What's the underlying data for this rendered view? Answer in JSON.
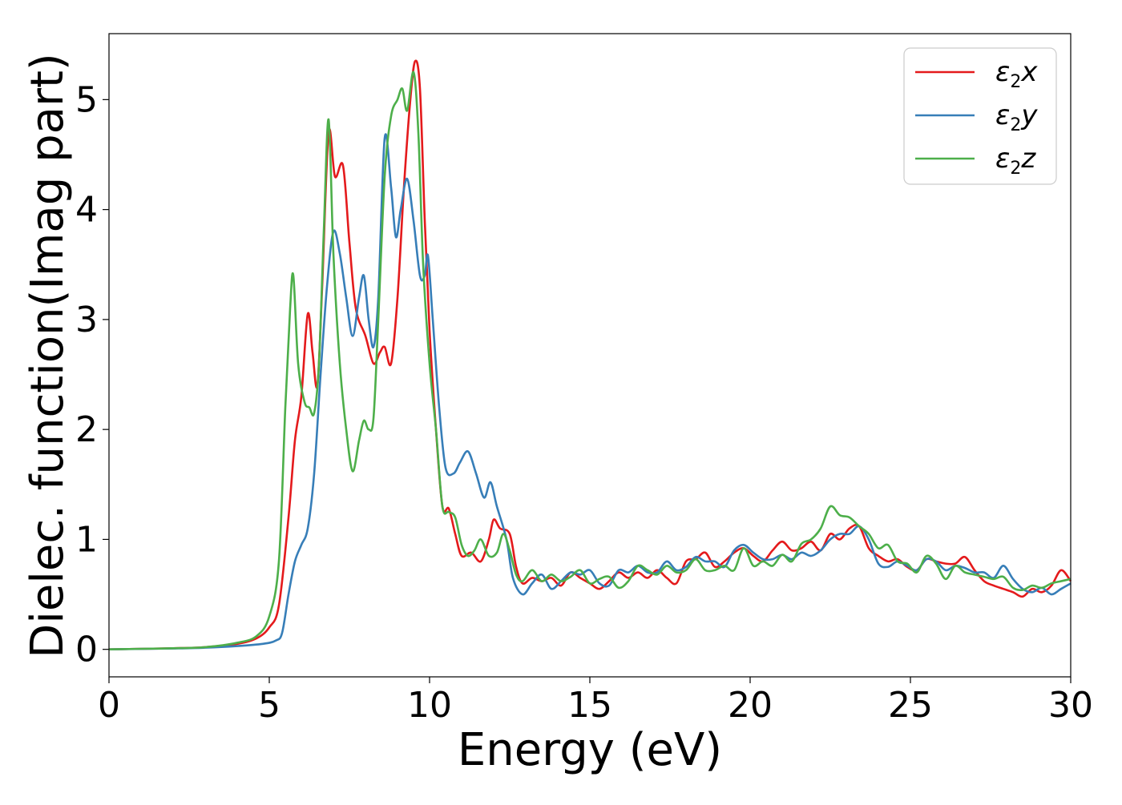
{
  "chart_data": {
    "type": "line",
    "xlabel": "Energy (eV)",
    "ylabel": "Dielec. function(Imag part)",
    "xlim": [
      0,
      30
    ],
    "ylim": [
      -0.25,
      5.6
    ],
    "xticks": [
      "0",
      "5",
      "10",
      "15",
      "20",
      "25",
      "30"
    ],
    "yticks": [
      "0",
      "1",
      "2",
      "3",
      "4",
      "5"
    ],
    "grid": false,
    "legend_position": "top-right",
    "series": [
      {
        "name": "ε₂x",
        "label_main": "ε",
        "label_sub": "2",
        "label_tail": "x",
        "color": "#e41a1c",
        "points": [
          [
            0,
            0
          ],
          [
            1,
            0.005
          ],
          [
            2,
            0.01
          ],
          [
            3,
            0.02
          ],
          [
            4,
            0.05
          ],
          [
            4.6,
            0.1
          ],
          [
            5.0,
            0.2
          ],
          [
            5.3,
            0.4
          ],
          [
            5.6,
            1.2
          ],
          [
            5.8,
            1.9
          ],
          [
            6.0,
            2.3
          ],
          [
            6.2,
            3.05
          ],
          [
            6.35,
            2.7
          ],
          [
            6.5,
            2.4
          ],
          [
            6.65,
            3.3
          ],
          [
            6.85,
            4.7
          ],
          [
            7.05,
            4.3
          ],
          [
            7.3,
            4.4
          ],
          [
            7.5,
            3.7
          ],
          [
            7.7,
            3.1
          ],
          [
            8.0,
            2.85
          ],
          [
            8.25,
            2.6
          ],
          [
            8.45,
            2.7
          ],
          [
            8.6,
            2.75
          ],
          [
            8.8,
            2.6
          ],
          [
            9.0,
            3.2
          ],
          [
            9.2,
            4.2
          ],
          [
            9.4,
            5.0
          ],
          [
            9.55,
            5.35
          ],
          [
            9.7,
            5.1
          ],
          [
            9.85,
            3.9
          ],
          [
            10.0,
            2.9
          ],
          [
            10.2,
            2.0
          ],
          [
            10.4,
            1.3
          ],
          [
            10.6,
            1.28
          ],
          [
            10.8,
            1.05
          ],
          [
            11.0,
            0.85
          ],
          [
            11.3,
            0.88
          ],
          [
            11.6,
            0.8
          ],
          [
            11.85,
            1.0
          ],
          [
            12.0,
            1.18
          ],
          [
            12.2,
            1.1
          ],
          [
            12.5,
            1.05
          ],
          [
            12.7,
            0.75
          ],
          [
            12.9,
            0.6
          ],
          [
            13.2,
            0.65
          ],
          [
            13.5,
            0.62
          ],
          [
            13.8,
            0.65
          ],
          [
            14.1,
            0.58
          ],
          [
            14.4,
            0.7
          ],
          [
            14.7,
            0.65
          ],
          [
            15.0,
            0.6
          ],
          [
            15.3,
            0.55
          ],
          [
            15.6,
            0.62
          ],
          [
            15.9,
            0.7
          ],
          [
            16.2,
            0.65
          ],
          [
            16.5,
            0.7
          ],
          [
            16.8,
            0.65
          ],
          [
            17.1,
            0.72
          ],
          [
            17.4,
            0.65
          ],
          [
            17.7,
            0.6
          ],
          [
            18.0,
            0.8
          ],
          [
            18.3,
            0.82
          ],
          [
            18.6,
            0.88
          ],
          [
            18.9,
            0.75
          ],
          [
            19.2,
            0.8
          ],
          [
            19.5,
            0.88
          ],
          [
            19.8,
            0.92
          ],
          [
            20.1,
            0.85
          ],
          [
            20.4,
            0.8
          ],
          [
            20.7,
            0.9
          ],
          [
            21.0,
            0.98
          ],
          [
            21.3,
            0.9
          ],
          [
            21.6,
            0.92
          ],
          [
            21.9,
            0.98
          ],
          [
            22.2,
            0.9
          ],
          [
            22.5,
            1.05
          ],
          [
            22.8,
            1.0
          ],
          [
            23.1,
            1.1
          ],
          [
            23.4,
            1.12
          ],
          [
            23.7,
            0.92
          ],
          [
            24.0,
            0.85
          ],
          [
            24.3,
            0.8
          ],
          [
            24.6,
            0.82
          ],
          [
            24.9,
            0.75
          ],
          [
            25.2,
            0.72
          ],
          [
            25.5,
            0.82
          ],
          [
            25.8,
            0.8
          ],
          [
            26.1,
            0.78
          ],
          [
            26.4,
            0.78
          ],
          [
            26.7,
            0.84
          ],
          [
            27.0,
            0.72
          ],
          [
            27.3,
            0.62
          ],
          [
            27.6,
            0.58
          ],
          [
            27.9,
            0.55
          ],
          [
            28.2,
            0.52
          ],
          [
            28.5,
            0.48
          ],
          [
            28.8,
            0.55
          ],
          [
            29.1,
            0.52
          ],
          [
            29.4,
            0.58
          ],
          [
            29.7,
            0.72
          ],
          [
            30.0,
            0.62
          ]
        ]
      },
      {
        "name": "ε₂y",
        "label_main": "ε",
        "label_sub": "2",
        "label_tail": "y",
        "color": "#377eb8",
        "points": [
          [
            0,
            0
          ],
          [
            1,
            0.004
          ],
          [
            2,
            0.008
          ],
          [
            3,
            0.015
          ],
          [
            4,
            0.03
          ],
          [
            4.8,
            0.05
          ],
          [
            5.2,
            0.08
          ],
          [
            5.4,
            0.15
          ],
          [
            5.6,
            0.5
          ],
          [
            5.8,
            0.8
          ],
          [
            6.0,
            0.95
          ],
          [
            6.2,
            1.1
          ],
          [
            6.4,
            1.6
          ],
          [
            6.6,
            2.5
          ],
          [
            6.8,
            3.3
          ],
          [
            7.0,
            3.8
          ],
          [
            7.2,
            3.6
          ],
          [
            7.4,
            3.2
          ],
          [
            7.6,
            2.85
          ],
          [
            7.8,
            3.2
          ],
          [
            7.95,
            3.4
          ],
          [
            8.1,
            3.0
          ],
          [
            8.25,
            2.75
          ],
          [
            8.4,
            3.2
          ],
          [
            8.6,
            4.65
          ],
          [
            8.8,
            4.2
          ],
          [
            8.95,
            3.75
          ],
          [
            9.1,
            4.0
          ],
          [
            9.3,
            4.28
          ],
          [
            9.5,
            3.9
          ],
          [
            9.7,
            3.4
          ],
          [
            9.85,
            3.4
          ],
          [
            9.95,
            3.58
          ],
          [
            10.1,
            3.0
          ],
          [
            10.3,
            2.2
          ],
          [
            10.5,
            1.65
          ],
          [
            10.75,
            1.6
          ],
          [
            10.95,
            1.7
          ],
          [
            11.2,
            1.8
          ],
          [
            11.45,
            1.6
          ],
          [
            11.7,
            1.38
          ],
          [
            11.9,
            1.52
          ],
          [
            12.1,
            1.3
          ],
          [
            12.4,
            1.0
          ],
          [
            12.6,
            0.65
          ],
          [
            12.9,
            0.5
          ],
          [
            13.2,
            0.6
          ],
          [
            13.5,
            0.68
          ],
          [
            13.8,
            0.55
          ],
          [
            14.1,
            0.62
          ],
          [
            14.4,
            0.7
          ],
          [
            14.7,
            0.68
          ],
          [
            15.0,
            0.72
          ],
          [
            15.3,
            0.6
          ],
          [
            15.6,
            0.58
          ],
          [
            15.9,
            0.72
          ],
          [
            16.2,
            0.7
          ],
          [
            16.5,
            0.76
          ],
          [
            16.8,
            0.7
          ],
          [
            17.1,
            0.7
          ],
          [
            17.4,
            0.8
          ],
          [
            17.7,
            0.72
          ],
          [
            18.0,
            0.75
          ],
          [
            18.3,
            0.84
          ],
          [
            18.6,
            0.8
          ],
          [
            18.9,
            0.8
          ],
          [
            19.2,
            0.75
          ],
          [
            19.5,
            0.9
          ],
          [
            19.8,
            0.95
          ],
          [
            20.1,
            0.88
          ],
          [
            20.4,
            0.82
          ],
          [
            20.7,
            0.82
          ],
          [
            21.0,
            0.86
          ],
          [
            21.3,
            0.82
          ],
          [
            21.6,
            0.88
          ],
          [
            21.9,
            0.85
          ],
          [
            22.2,
            0.9
          ],
          [
            22.5,
            1.0
          ],
          [
            22.8,
            1.05
          ],
          [
            23.1,
            1.05
          ],
          [
            23.4,
            1.12
          ],
          [
            23.7,
            1.0
          ],
          [
            24.0,
            0.78
          ],
          [
            24.3,
            0.75
          ],
          [
            24.6,
            0.8
          ],
          [
            24.9,
            0.76
          ],
          [
            25.2,
            0.72
          ],
          [
            25.5,
            0.82
          ],
          [
            25.8,
            0.8
          ],
          [
            26.1,
            0.72
          ],
          [
            26.4,
            0.76
          ],
          [
            26.7,
            0.74
          ],
          [
            27.0,
            0.7
          ],
          [
            27.3,
            0.7
          ],
          [
            27.6,
            0.65
          ],
          [
            27.9,
            0.76
          ],
          [
            28.2,
            0.64
          ],
          [
            28.5,
            0.55
          ],
          [
            28.8,
            0.52
          ],
          [
            29.1,
            0.56
          ],
          [
            29.4,
            0.5
          ],
          [
            29.7,
            0.55
          ],
          [
            30.0,
            0.6
          ]
        ]
      },
      {
        "name": "ε₂z",
        "label_main": "ε",
        "label_sub": "2",
        "label_tail": "z",
        "color": "#4daf4a",
        "points": [
          [
            0,
            0
          ],
          [
            1,
            0.005
          ],
          [
            2,
            0.01
          ],
          [
            3,
            0.02
          ],
          [
            4,
            0.06
          ],
          [
            4.6,
            0.12
          ],
          [
            5.0,
            0.3
          ],
          [
            5.3,
            0.8
          ],
          [
            5.5,
            2.2
          ],
          [
            5.65,
            3.1
          ],
          [
            5.75,
            3.4
          ],
          [
            5.9,
            2.6
          ],
          [
            6.1,
            2.25
          ],
          [
            6.25,
            2.2
          ],
          [
            6.4,
            2.15
          ],
          [
            6.55,
            2.6
          ],
          [
            6.7,
            3.8
          ],
          [
            6.85,
            4.82
          ],
          [
            7.0,
            3.6
          ],
          [
            7.2,
            2.6
          ],
          [
            7.4,
            2.0
          ],
          [
            7.6,
            1.62
          ],
          [
            7.8,
            1.9
          ],
          [
            7.95,
            2.08
          ],
          [
            8.1,
            2.0
          ],
          [
            8.25,
            2.1
          ],
          [
            8.4,
            3.0
          ],
          [
            8.6,
            4.3
          ],
          [
            8.8,
            4.85
          ],
          [
            9.0,
            5.0
          ],
          [
            9.15,
            5.1
          ],
          [
            9.3,
            4.9
          ],
          [
            9.5,
            5.25
          ],
          [
            9.65,
            4.7
          ],
          [
            9.8,
            3.5
          ],
          [
            10.0,
            2.6
          ],
          [
            10.2,
            2.0
          ],
          [
            10.4,
            1.3
          ],
          [
            10.6,
            1.25
          ],
          [
            10.8,
            1.2
          ],
          [
            11.0,
            0.95
          ],
          [
            11.2,
            0.85
          ],
          [
            11.4,
            0.9
          ],
          [
            11.6,
            1.0
          ],
          [
            11.85,
            0.85
          ],
          [
            12.1,
            0.88
          ],
          [
            12.3,
            1.05
          ],
          [
            12.5,
            0.9
          ],
          [
            12.7,
            0.68
          ],
          [
            12.9,
            0.62
          ],
          [
            13.2,
            0.72
          ],
          [
            13.5,
            0.62
          ],
          [
            13.8,
            0.68
          ],
          [
            14.1,
            0.62
          ],
          [
            14.4,
            0.66
          ],
          [
            14.7,
            0.72
          ],
          [
            15.0,
            0.6
          ],
          [
            15.3,
            0.64
          ],
          [
            15.6,
            0.66
          ],
          [
            15.9,
            0.56
          ],
          [
            16.2,
            0.62
          ],
          [
            16.5,
            0.76
          ],
          [
            16.8,
            0.72
          ],
          [
            17.1,
            0.68
          ],
          [
            17.4,
            0.76
          ],
          [
            17.7,
            0.7
          ],
          [
            18.0,
            0.72
          ],
          [
            18.3,
            0.82
          ],
          [
            18.6,
            0.72
          ],
          [
            18.9,
            0.72
          ],
          [
            19.2,
            0.76
          ],
          [
            19.5,
            0.72
          ],
          [
            19.8,
            0.92
          ],
          [
            20.1,
            0.76
          ],
          [
            20.4,
            0.8
          ],
          [
            20.7,
            0.76
          ],
          [
            21.0,
            0.86
          ],
          [
            21.3,
            0.8
          ],
          [
            21.6,
            0.96
          ],
          [
            21.9,
            1.0
          ],
          [
            22.2,
            1.1
          ],
          [
            22.5,
            1.3
          ],
          [
            22.8,
            1.22
          ],
          [
            23.1,
            1.2
          ],
          [
            23.4,
            1.12
          ],
          [
            23.7,
            1.05
          ],
          [
            24.0,
            0.92
          ],
          [
            24.3,
            0.95
          ],
          [
            24.6,
            0.8
          ],
          [
            24.9,
            0.78
          ],
          [
            25.2,
            0.7
          ],
          [
            25.5,
            0.85
          ],
          [
            25.8,
            0.78
          ],
          [
            26.1,
            0.64
          ],
          [
            26.4,
            0.76
          ],
          [
            26.7,
            0.7
          ],
          [
            27.0,
            0.68
          ],
          [
            27.3,
            0.66
          ],
          [
            27.6,
            0.64
          ],
          [
            27.9,
            0.66
          ],
          [
            28.2,
            0.56
          ],
          [
            28.5,
            0.54
          ],
          [
            28.8,
            0.58
          ],
          [
            29.1,
            0.56
          ],
          [
            29.4,
            0.6
          ],
          [
            29.7,
            0.62
          ],
          [
            30.0,
            0.64
          ]
        ]
      }
    ]
  }
}
